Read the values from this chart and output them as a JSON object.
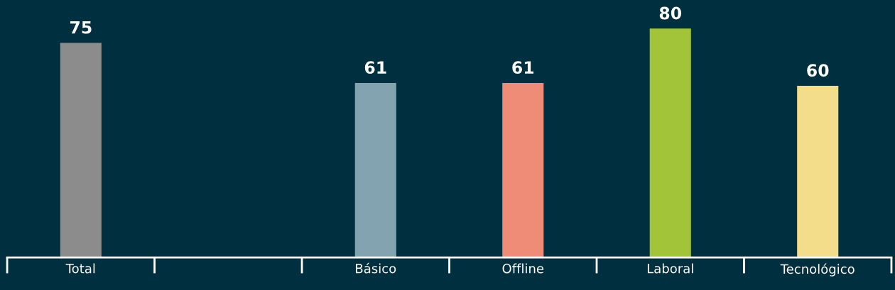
{
  "chart_data": {
    "type": "bar",
    "categories": [
      "Total",
      null,
      "Básico",
      "Offline",
      "Laboral",
      "Tecnológico"
    ],
    "values": [
      75,
      null,
      61,
      61,
      80,
      60
    ],
    "colors": [
      "#8c8c8c",
      null,
      "#84a3b0",
      "#ee8c78",
      "#a2c438",
      "#f3dc8a"
    ],
    "ylim": [
      0,
      90
    ],
    "tick_labels": "x",
    "data_labels": true,
    "grid": false,
    "legend": false
  }
}
